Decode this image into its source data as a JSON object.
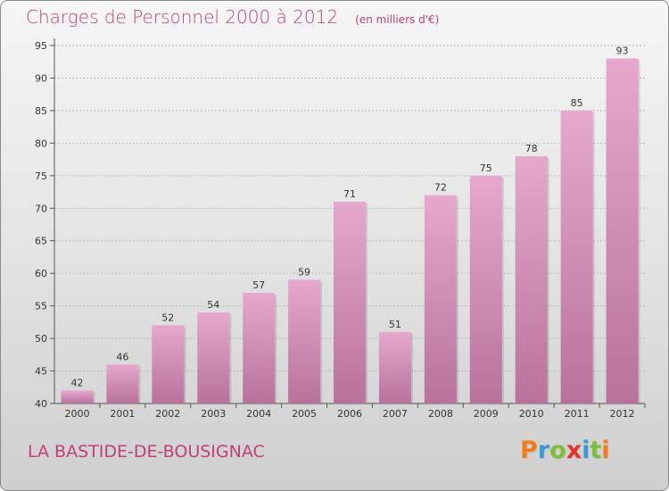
{
  "header": {
    "title": "Charges de Personnel 2000 à 2012",
    "subtitle": "(en milliers d'€)"
  },
  "footer": {
    "city": "LA BASTIDE-DE-BOUSIGNAC",
    "brand": "Proxiti",
    "brand_colors": [
      "#f07c1e",
      "#3a9ad9",
      "#7bbf3a",
      "#e5332a",
      "#3a9ad9",
      "#7bbf3a",
      "#f07c1e"
    ]
  },
  "colors": {
    "accent": "#c0407a",
    "bar_top": "#e6a8cc",
    "bar_bottom": "#b8729c",
    "grid": "#bbbbbb",
    "axis_text": "#333333"
  },
  "chart_data": {
    "type": "bar",
    "title": "Charges de Personnel 2000 à 2012",
    "subtitle": "(en milliers d'€)",
    "categories": [
      "2000",
      "2001",
      "2002",
      "2003",
      "2004",
      "2005",
      "2006",
      "2007",
      "2008",
      "2009",
      "2010",
      "2011",
      "2012"
    ],
    "values": [
      42,
      46,
      52,
      54,
      57,
      59,
      71,
      51,
      72,
      75,
      78,
      85,
      93
    ],
    "data_labels": [
      "42",
      "46",
      "52",
      "54",
      "57",
      "59",
      "71",
      "51",
      "72",
      "75",
      "78",
      "85",
      "93"
    ],
    "ylim": [
      40,
      95
    ],
    "yticks": [
      "40",
      "45",
      "50",
      "55",
      "60",
      "65",
      "70",
      "75",
      "80",
      "85",
      "90",
      "95"
    ],
    "grid": true,
    "grid_axis": "y"
  }
}
